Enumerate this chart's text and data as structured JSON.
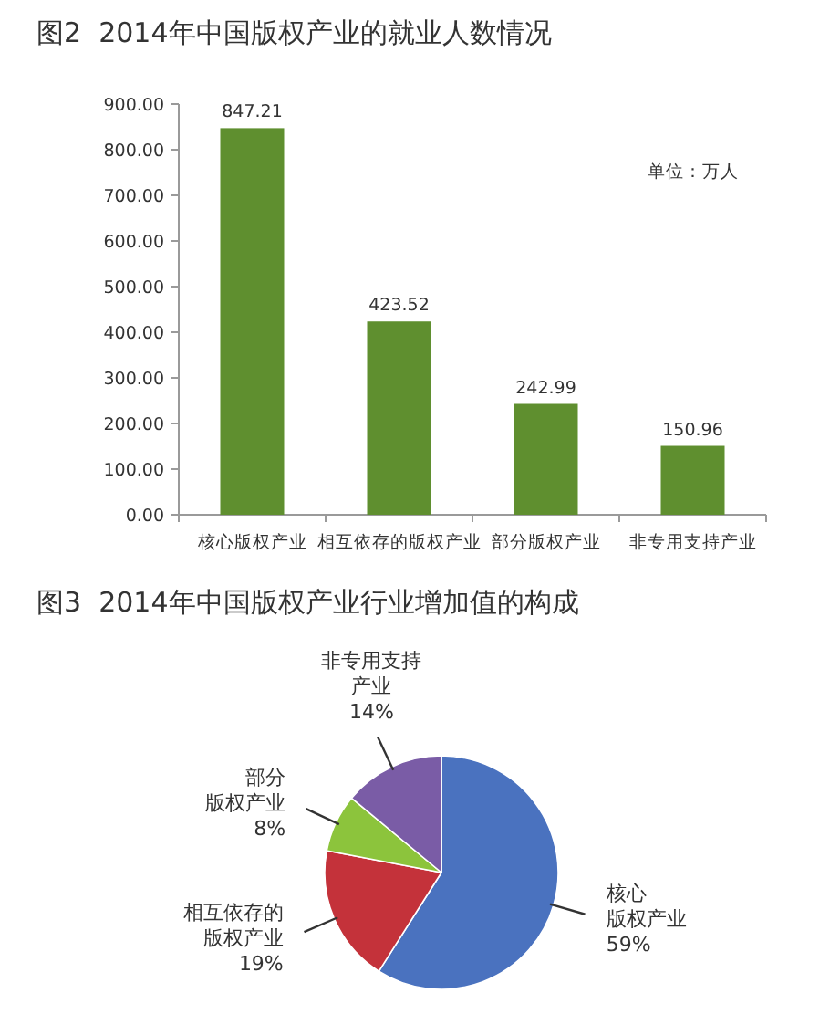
{
  "chart_data": [
    {
      "type": "bar",
      "title": "图2  2014年中国版权产业的就业人数情况",
      "categories": [
        "核心版权产业",
        "相互依存的版权产业",
        "部分版权产业",
        "非专用支持产业"
      ],
      "values": [
        847.21,
        423.52,
        242.99,
        150.96
      ],
      "color": "#5f8f2f",
      "ylim": [
        0,
        900
      ],
      "yticks": [
        {
          "value": 0,
          "label": "0.00"
        },
        {
          "value": 100,
          "label": "100.00"
        },
        {
          "value": 200,
          "label": "200.00"
        },
        {
          "value": 300,
          "label": "300.00"
        },
        {
          "value": 400,
          "label": "400.00"
        },
        {
          "value": 500,
          "label": "500.00"
        },
        {
          "value": 600,
          "label": "600.00"
        },
        {
          "value": 700,
          "label": "700.00"
        },
        {
          "value": 800,
          "label": "800.00"
        },
        {
          "value": 900,
          "label": "900.00"
        }
      ],
      "data_labels": true,
      "annotations": [
        "单位：万人"
      ]
    },
    {
      "type": "pie",
      "title": "图3  2014年中国版权产业行业增加值的构成",
      "categories": [
        "核心版权产业",
        "相互依存的版权产业",
        "部分版权产业",
        "非专用支持产业"
      ],
      "values": [
        59,
        19,
        8,
        14
      ],
      "colors": [
        "#4a72bf",
        "#c4323a",
        "#8cc43c",
        "#7a5ca6"
      ],
      "value_labels": [
        "59%",
        "19%",
        "8%",
        "14%"
      ]
    }
  ]
}
